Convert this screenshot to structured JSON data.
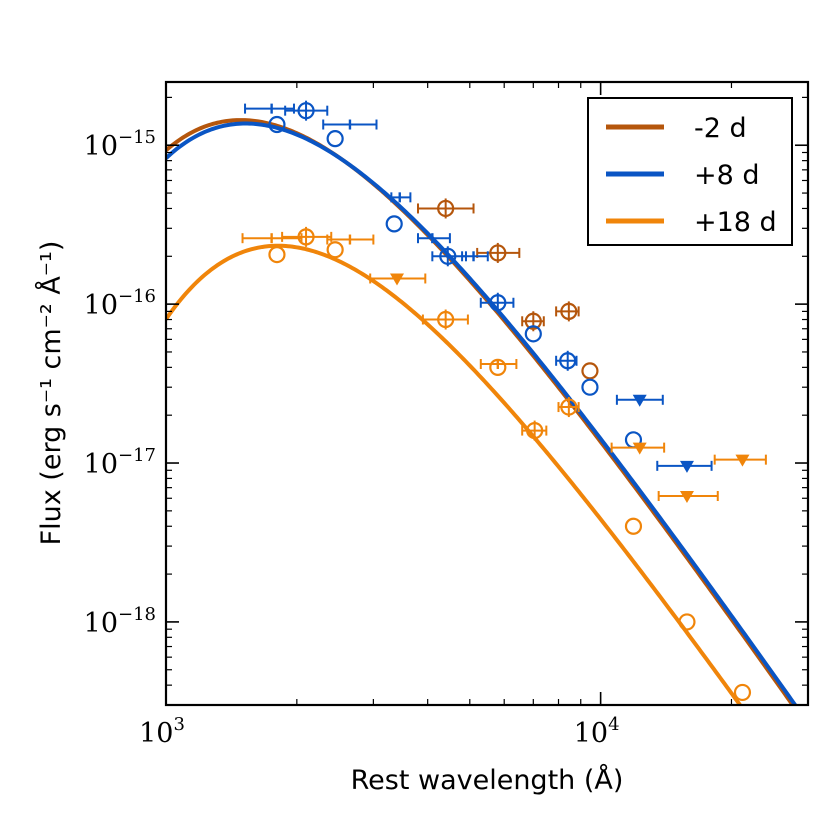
{
  "chart_data": {
    "type": "scatter",
    "title": "",
    "xlabel": "Rest wavelength (Å)",
    "ylabel": "Flux (erg s⁻¹ cm⁻² Å⁻¹)",
    "xscale": "log",
    "yscale": "log",
    "xlim": [
      1000,
      30000
    ],
    "ylim": [
      3e-19,
      2.5e-15
    ],
    "x_ticks": [
      {
        "value": 1000,
        "base": "10",
        "exp": "3"
      },
      {
        "value": 10000,
        "base": "10",
        "exp": "4"
      }
    ],
    "y_ticks": [
      {
        "value": 1e-15,
        "base": "10",
        "exp": "−15"
      },
      {
        "value": 1e-16,
        "base": "10",
        "exp": "−16"
      },
      {
        "value": 1e-17,
        "base": "10",
        "exp": "−17"
      },
      {
        "value": 1e-18,
        "base": "10",
        "exp": "−18"
      }
    ],
    "legend_position": "top-right",
    "series": [
      {
        "name": "-2 d",
        "color": "#b5560c",
        "model_temperature": 19500,
        "model_scale": 1.44e-15,
        "points": [
          {
            "x": 4400,
            "y": 4e-16,
            "xerr": [
              3800,
              5100
            ],
            "marker": "circle",
            "ebar": true
          },
          {
            "x": 5800,
            "y": 2.1e-16,
            "xerr": [
              5200,
              6500
            ],
            "marker": "circle",
            "ebar": true
          },
          {
            "x": 7000,
            "y": 7.8e-17,
            "xerr": [
              6600,
              7400
            ],
            "marker": "circle",
            "ebar": true
          },
          {
            "x": 8450,
            "y": 9e-17,
            "xerr": [
              7900,
              8900
            ],
            "marker": "circle",
            "ebar": true
          },
          {
            "x": 9450,
            "y": 3.8e-17,
            "xerr": null,
            "marker": "circle",
            "ebar": false
          }
        ]
      },
      {
        "name": "+8 d",
        "color": "#0a55c4",
        "model_temperature": 19000,
        "model_scale": 1.37e-15,
        "points": [
          {
            "x": 1800,
            "y": 1.35e-15,
            "xerr": null,
            "marker": "circle",
            "ebar": false
          },
          {
            "x": 1750,
            "y": 1.7e-15,
            "xerr": [
              1520,
              1970
            ],
            "marker": "cap",
            "ebar": true
          },
          {
            "x": 2100,
            "y": 1.65e-15,
            "xerr": [
              1880,
              2350
            ],
            "marker": "circle",
            "ebar": true
          },
          {
            "x": 2450,
            "y": 1.1e-15,
            "xerr": null,
            "marker": "circle",
            "ebar": false
          },
          {
            "x": 2650,
            "y": 1.35e-15,
            "xerr": [
              2300,
              3050
            ],
            "marker": "cap",
            "ebar": true
          },
          {
            "x": 3450,
            "y": 4.7e-16,
            "xerr": [
              3300,
              3650
            ],
            "marker": "cap",
            "ebar": true
          },
          {
            "x": 3350,
            "y": 3.2e-16,
            "xerr": null,
            "marker": "circle",
            "ebar": false
          },
          {
            "x": 4100,
            "y": 2.6e-16,
            "xerr": [
              3800,
              4500
            ],
            "marker": "cap",
            "ebar": true
          },
          {
            "x": 4450,
            "y": 2e-16,
            "xerr": [
              4100,
              4900
            ],
            "marker": "circle",
            "ebar": true
          },
          {
            "x": 5100,
            "y": 2e-16,
            "xerr": [
              4800,
              5500
            ],
            "marker": "cap",
            "ebar": true
          },
          {
            "x": 5800,
            "y": 1.02e-16,
            "xerr": [
              5300,
              6300
            ],
            "marker": "circle",
            "ebar": true
          },
          {
            "x": 7000,
            "y": 6.5e-17,
            "xerr": null,
            "marker": "circle",
            "ebar": false
          },
          {
            "x": 8400,
            "y": 4.4e-17,
            "xerr": [
              7900,
              8800
            ],
            "marker": "circle",
            "ebar": true
          },
          {
            "x": 9450,
            "y": 3e-17,
            "xerr": null,
            "marker": "circle",
            "ebar": false
          },
          {
            "x": 12300,
            "y": 2.5e-17,
            "xerr": [
              10900,
              13900
            ],
            "marker": "triangle",
            "ebar": true
          },
          {
            "x": 11900,
            "y": 1.4e-17,
            "xerr": null,
            "marker": "circle",
            "ebar": false
          },
          {
            "x": 15800,
            "y": 9.6e-18,
            "xerr": [
              13500,
              18000
            ],
            "marker": "triangle",
            "ebar": true
          }
        ]
      },
      {
        "name": "+18 d",
        "color": "#f0850a",
        "model_temperature": 16000,
        "model_scale": 2.33e-16,
        "points": [
          {
            "x": 1800,
            "y": 2.05e-16,
            "xerr": null,
            "marker": "circle",
            "ebar": false
          },
          {
            "x": 1750,
            "y": 2.6e-16,
            "xerr": [
              1500,
              2050
            ],
            "marker": "cap",
            "ebar": true
          },
          {
            "x": 2100,
            "y": 2.65e-16,
            "xerr": [
              1850,
              2400
            ],
            "marker": "circle",
            "ebar": true
          },
          {
            "x": 2450,
            "y": 2.2e-16,
            "xerr": null,
            "marker": "circle",
            "ebar": false
          },
          {
            "x": 2650,
            "y": 2.55e-16,
            "xerr": [
              2350,
              3000
            ],
            "marker": "cap",
            "ebar": true
          },
          {
            "x": 3400,
            "y": 1.45e-16,
            "xerr": [
              2950,
              3950
            ],
            "marker": "triangle",
            "ebar": true
          },
          {
            "x": 4400,
            "y": 8e-17,
            "xerr": [
              3900,
              4950
            ],
            "marker": "circle",
            "ebar": true
          },
          {
            "x": 5800,
            "y": 4.2e-17,
            "xerr": [
              5300,
              6400
            ],
            "marker": "cap",
            "ebar": true
          },
          {
            "x": 5800,
            "y": 4e-17,
            "xerr": null,
            "marker": "circle",
            "ebar": false
          },
          {
            "x": 7050,
            "y": 1.6e-17,
            "xerr": [
              6600,
              7500
            ],
            "marker": "circle",
            "ebar": true
          },
          {
            "x": 8450,
            "y": 2.25e-17,
            "xerr": [
              8000,
              8900
            ],
            "marker": "circle",
            "ebar": true
          },
          {
            "x": 12300,
            "y": 1.25e-17,
            "xerr": [
              10600,
              14000
            ],
            "marker": "triangle",
            "ebar": true
          },
          {
            "x": 15800,
            "y": 6.2e-18,
            "xerr": [
              13600,
              18600
            ],
            "marker": "triangle",
            "ebar": true
          },
          {
            "x": 11900,
            "y": 4e-18,
            "xerr": null,
            "marker": "circle",
            "ebar": false
          },
          {
            "x": 15800,
            "y": 1e-18,
            "xerr": null,
            "marker": "circle",
            "ebar": false
          },
          {
            "x": 21200,
            "y": 1.05e-17,
            "xerr": [
              18300,
              24000
            ],
            "marker": "triangle",
            "ebar": true
          },
          {
            "x": 21200,
            "y": 3.6e-19,
            "xerr": null,
            "marker": "circle",
            "ebar": false
          }
        ]
      }
    ]
  }
}
